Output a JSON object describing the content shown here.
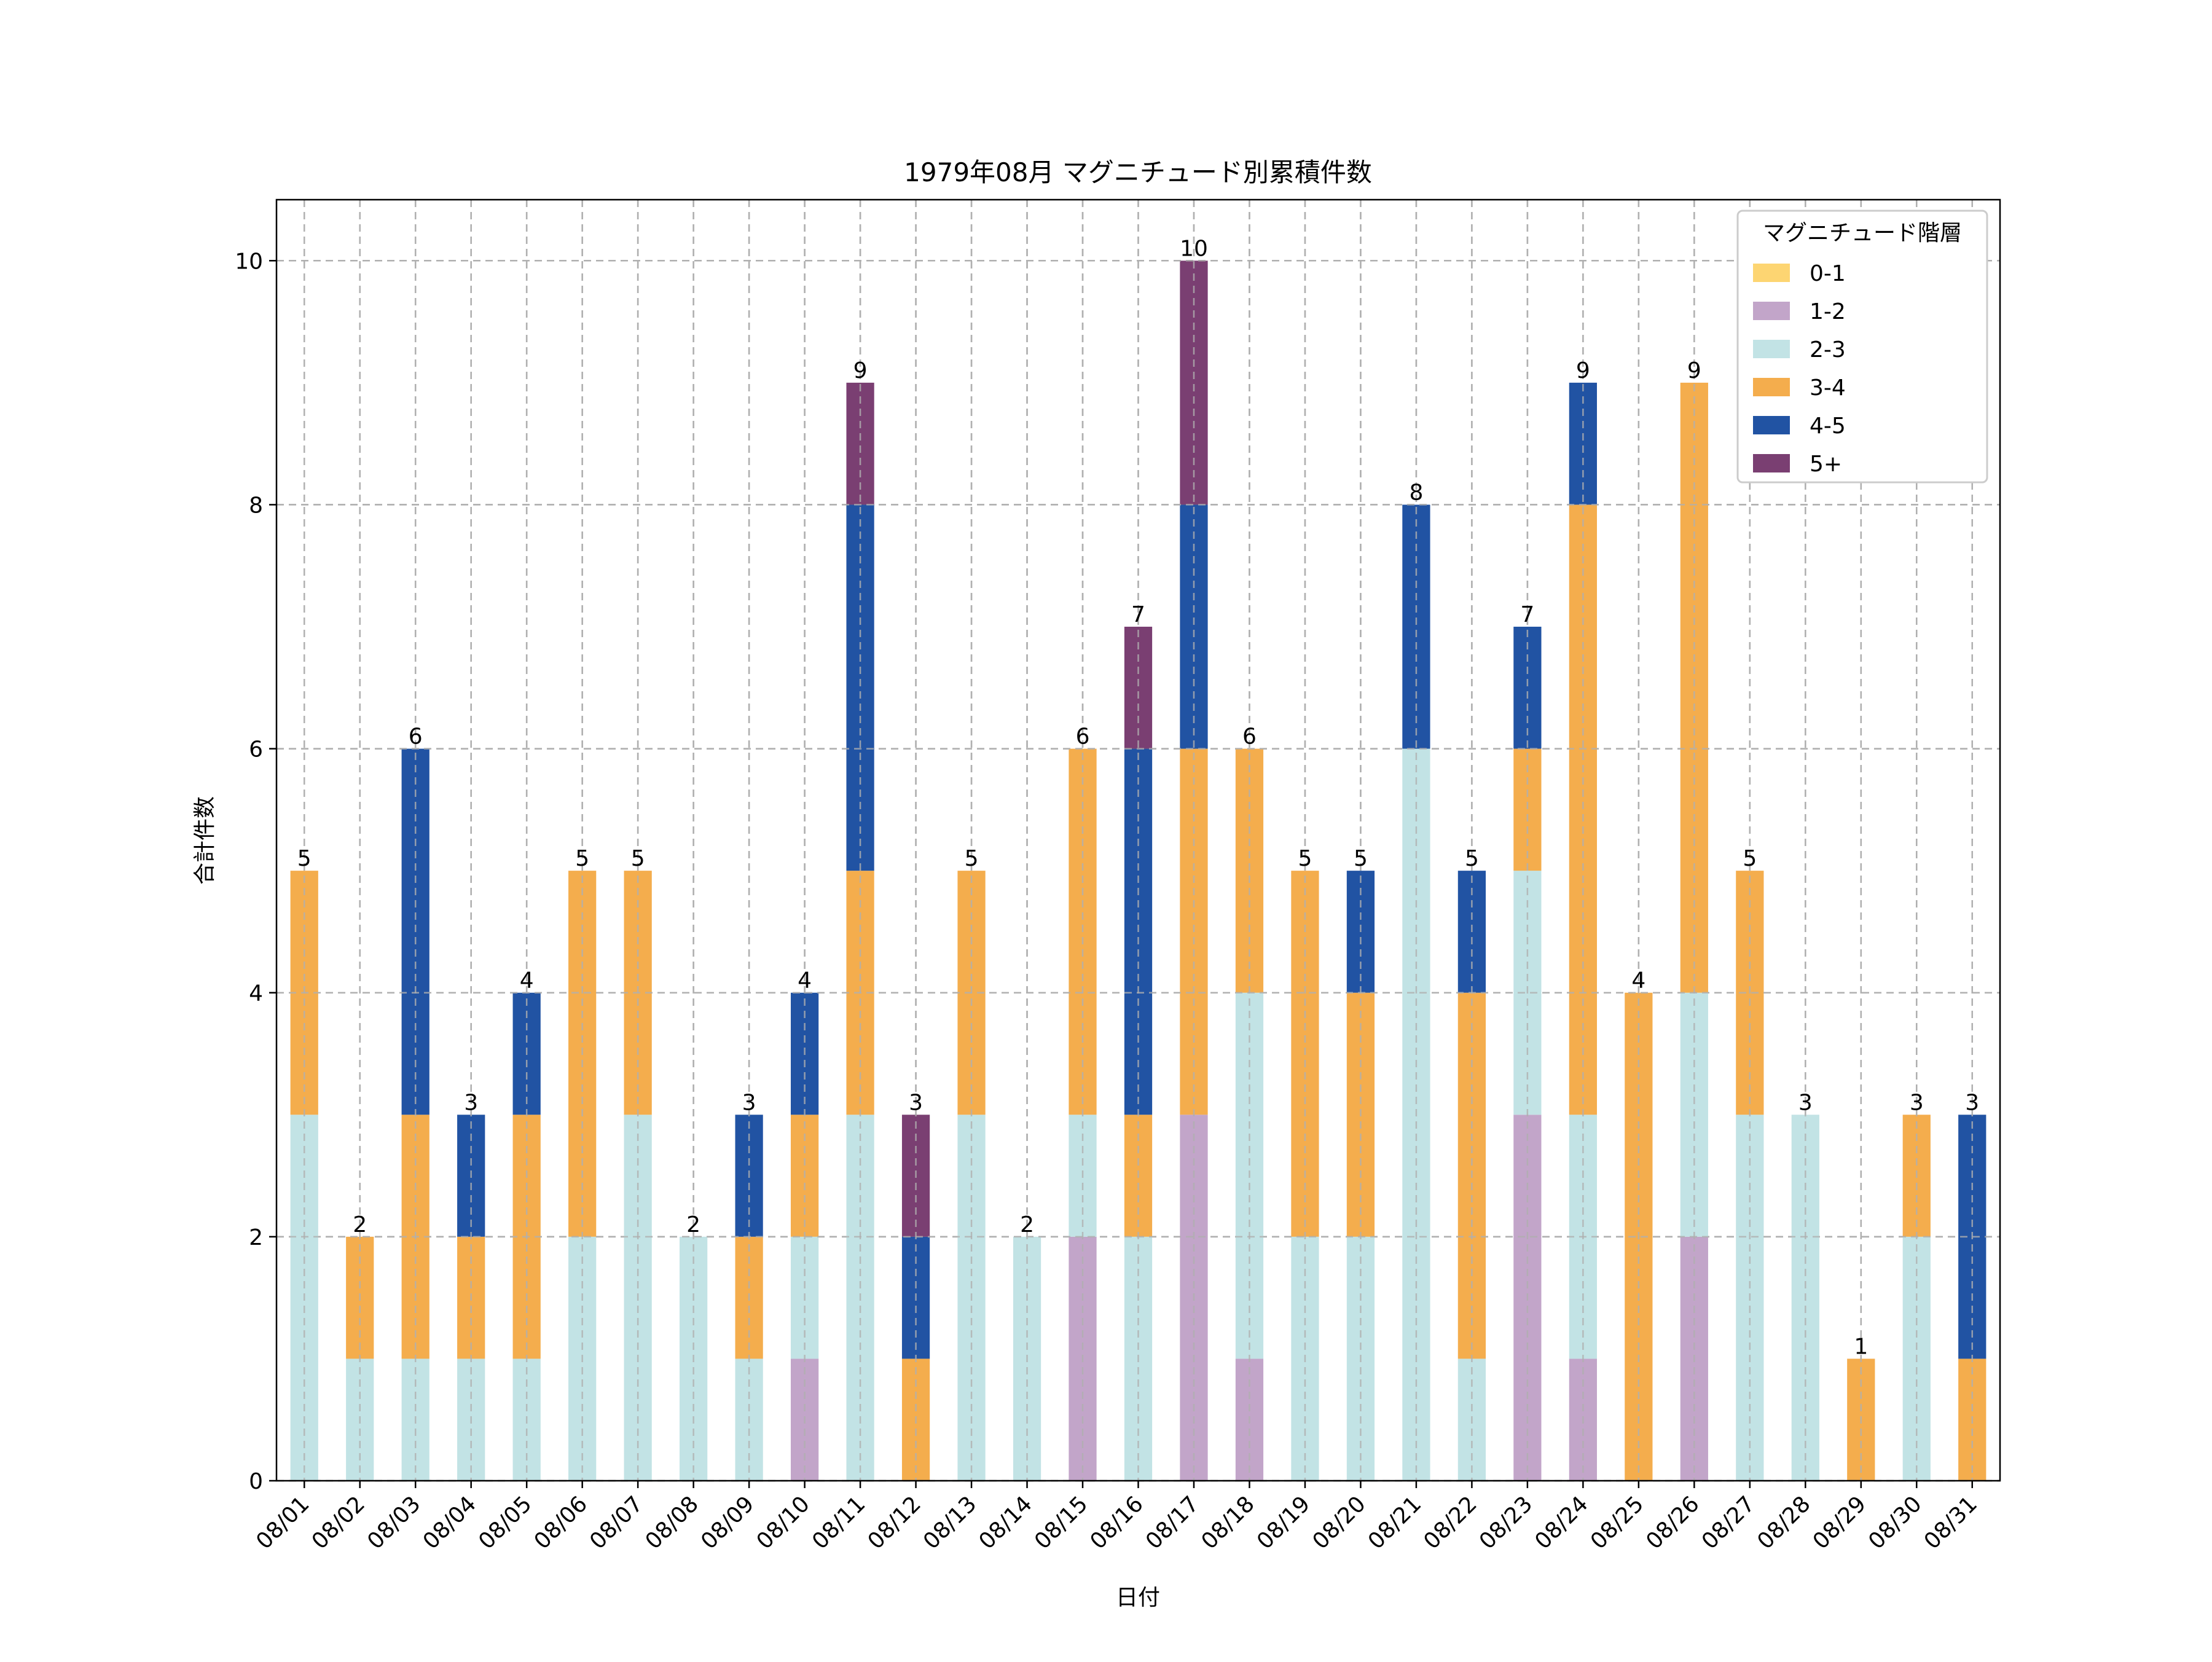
{
  "chart_data": {
    "type": "bar",
    "stacked": true,
    "title": "1979年08月 マグニチュード別累積件数",
    "xlabel": "日付",
    "ylabel": "合計件数",
    "ylim": [
      0,
      10.5
    ],
    "yticks": [
      0,
      2,
      4,
      6,
      8,
      10
    ],
    "grid": true,
    "legend": {
      "title": "マグニチュード階層",
      "placement": "top-right"
    },
    "categories": [
      "08/01",
      "08/02",
      "08/03",
      "08/04",
      "08/05",
      "08/06",
      "08/07",
      "08/08",
      "08/09",
      "08/10",
      "08/11",
      "08/12",
      "08/13",
      "08/14",
      "08/15",
      "08/16",
      "08/17",
      "08/18",
      "08/19",
      "08/20",
      "08/21",
      "08/22",
      "08/23",
      "08/24",
      "08/25",
      "08/26",
      "08/27",
      "08/28",
      "08/29",
      "08/30",
      "08/31"
    ],
    "series": [
      {
        "name": "0-1",
        "color": "#FDD572",
        "values": [
          0,
          0,
          0,
          0,
          0,
          0,
          0,
          0,
          0,
          0,
          0,
          0,
          0,
          0,
          0,
          0,
          0,
          0,
          0,
          0,
          0,
          0,
          0,
          0,
          0,
          0,
          0,
          0,
          0,
          0,
          0
        ]
      },
      {
        "name": "1-2",
        "color": "#C2A5C9",
        "values": [
          0,
          0,
          0,
          0,
          0,
          0,
          0,
          0,
          0,
          1,
          0,
          0,
          0,
          0,
          2,
          0,
          3,
          1,
          0,
          0,
          0,
          0,
          3,
          1,
          0,
          2,
          0,
          0,
          0,
          0,
          0
        ]
      },
      {
        "name": "2-3",
        "color": "#C2E3E5",
        "values": [
          3,
          1,
          1,
          1,
          1,
          2,
          3,
          2,
          1,
          1,
          3,
          0,
          3,
          2,
          1,
          2,
          0,
          3,
          2,
          2,
          6,
          1,
          2,
          2,
          0,
          2,
          3,
          3,
          0,
          2,
          0
        ]
      },
      {
        "name": "3-4",
        "color": "#F4AD4D",
        "values": [
          2,
          1,
          2,
          1,
          2,
          3,
          2,
          0,
          1,
          1,
          2,
          1,
          2,
          0,
          3,
          1,
          3,
          2,
          3,
          2,
          0,
          3,
          1,
          5,
          4,
          5,
          2,
          0,
          1,
          1,
          1
        ]
      },
      {
        "name": "4-5",
        "color": "#2153A3",
        "values": [
          0,
          0,
          3,
          1,
          1,
          0,
          0,
          0,
          1,
          1,
          3,
          1,
          0,
          0,
          0,
          3,
          2,
          0,
          0,
          1,
          2,
          1,
          1,
          1,
          0,
          0,
          0,
          0,
          0,
          0,
          2
        ]
      },
      {
        "name": "5+",
        "color": "#7A3F72",
        "values": [
          0,
          0,
          0,
          0,
          0,
          0,
          0,
          0,
          0,
          0,
          1,
          1,
          0,
          0,
          0,
          1,
          2,
          0,
          0,
          0,
          0,
          0,
          0,
          0,
          0,
          0,
          0,
          0,
          0,
          0,
          0
        ]
      }
    ],
    "totals": [
      5,
      2,
      6,
      3,
      4,
      5,
      5,
      2,
      3,
      4,
      9,
      3,
      5,
      2,
      6,
      7,
      10,
      6,
      5,
      5,
      8,
      5,
      7,
      9,
      4,
      9,
      5,
      3,
      1,
      3,
      3
    ]
  }
}
